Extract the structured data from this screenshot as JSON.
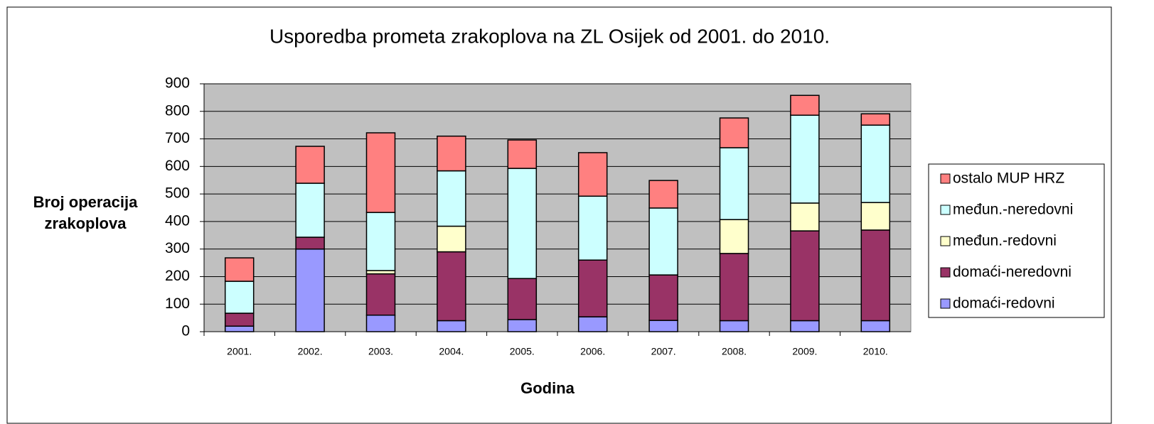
{
  "chart_data": {
    "type": "stacked_bar",
    "title": "Usporedba prometa zrakoplova na ZL Osijek od 2001. do 2010.",
    "ylabel": [
      "Broj operacija",
      "zrakoplova"
    ],
    "xlabel": "Godina",
    "categories": [
      "2001.",
      "2002.",
      "2003.",
      "2004.",
      "2005.",
      "2006.",
      "2007.",
      "2008.",
      "2009.",
      "2010."
    ],
    "series": [
      {
        "name": "domaći-redovni",
        "color": "#9999ff",
        "values": [
          20,
          300,
          60,
          40,
          44,
          54,
          41,
          40,
          40,
          40
        ]
      },
      {
        "name": "domaći-neredovni",
        "color": "#993366",
        "values": [
          47,
          43,
          150,
          250,
          149,
          206,
          165,
          244,
          326,
          329
        ]
      },
      {
        "name": "međun.-redovni",
        "color": "#ffffcc",
        "values": [
          0,
          0,
          12,
          93,
          0,
          0,
          0,
          123,
          101,
          100
        ]
      },
      {
        "name": "međun.-neredovni",
        "color": "#ccffff",
        "values": [
          116,
          196,
          211,
          201,
          400,
          232,
          243,
          261,
          319,
          281
        ]
      },
      {
        "name": "ostalo MUP HRZ",
        "color": "#ff8080",
        "values": [
          85,
          134,
          289,
          126,
          103,
          158,
          100,
          108,
          72,
          41
        ]
      }
    ],
    "ylim": [
      0,
      900
    ],
    "yticks": [
      0,
      100,
      200,
      300,
      400,
      500,
      600,
      700,
      800,
      900
    ],
    "grid": true,
    "plot_background": "#c0c0c0",
    "legend": "right"
  }
}
